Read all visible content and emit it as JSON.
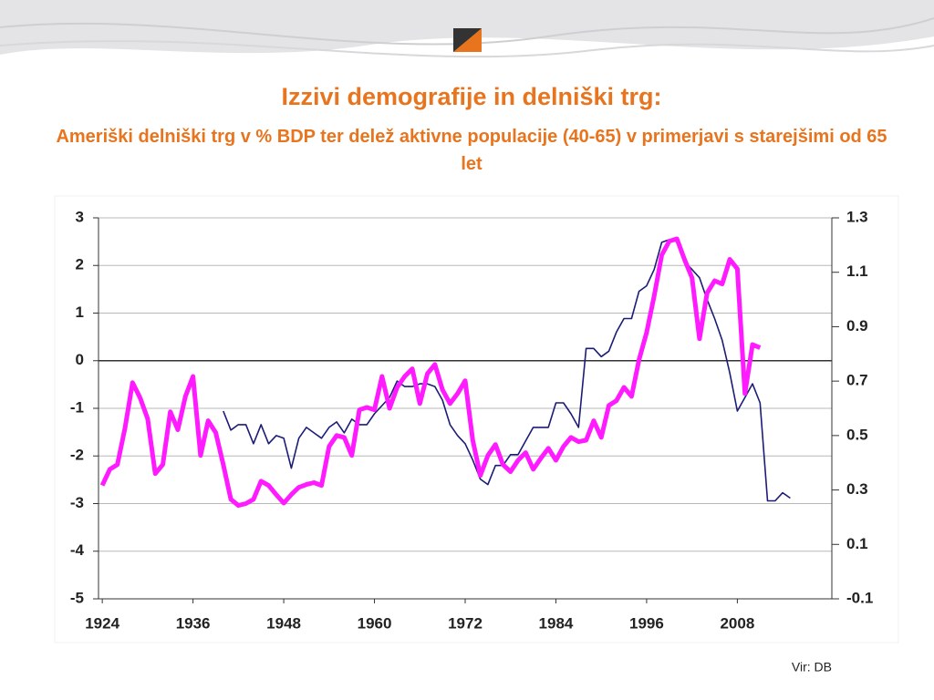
{
  "chart_data": {
    "type": "line",
    "title": "Izzivi demografije in delniški trg:",
    "subtitle": "Ameriški delniški trg v % BDP ter delež aktivne populacije (40-65) v primerjavi s starejšimi od 65 let",
    "source": "Vir: DB",
    "xlim": [
      1923.5,
      2020.5
    ],
    "xticks": [
      1924,
      1936,
      1948,
      1960,
      1972,
      1984,
      1996,
      2008
    ],
    "ylim": [
      -5,
      3
    ],
    "yticks": [
      -5,
      -4,
      -3,
      -2,
      -1,
      0,
      1,
      2,
      3
    ],
    "y2lim": [
      -0.1,
      1.3
    ],
    "y2ticks": [
      -0.1,
      0.1,
      0.3,
      0.5,
      0.7,
      0.9,
      1.1,
      1.3
    ],
    "grid": true,
    "series": [
      {
        "color": "#ff1aff",
        "axis": "y",
        "x": [
          1924,
          1925,
          1926,
          1927,
          1928,
          1929,
          1930,
          1931,
          1932,
          1933,
          1934,
          1935,
          1936,
          1937,
          1938,
          1939,
          1940,
          1941,
          1942,
          1943,
          1944,
          1945,
          1946,
          1947,
          1948,
          1949,
          1950,
          1951,
          1952,
          1953,
          1954,
          1955,
          1956,
          1957,
          1958,
          1959,
          1960,
          1961,
          1962,
          1963,
          1964,
          1965,
          1966,
          1967,
          1968,
          1969,
          1970,
          1971,
          1972,
          1973,
          1974,
          1975,
          1976,
          1977,
          1978,
          1979,
          1980,
          1981,
          1982,
          1983,
          1984,
          1985,
          1986,
          1987,
          1988,
          1989,
          1990,
          1991,
          1992,
          1993,
          1994,
          1995,
          1996,
          1997,
          1998,
          1999,
          2000,
          2001,
          2002,
          2003,
          2004,
          2005,
          2006,
          2007,
          2008,
          2009,
          2010,
          2011
        ],
        "values": [
          -2.62,
          -2.28,
          -2.18,
          -1.42,
          -0.46,
          -0.78,
          -1.22,
          -2.37,
          -2.18,
          -1.07,
          -1.45,
          -0.75,
          -0.33,
          -1.99,
          -1.26,
          -1.51,
          -2.18,
          -2.91,
          -3.04,
          -3.0,
          -2.91,
          -2.53,
          -2.62,
          -2.81,
          -2.99,
          -2.81,
          -2.66,
          -2.6,
          -2.56,
          -2.62,
          -1.8,
          -1.57,
          -1.61,
          -1.99,
          -1.03,
          -0.98,
          -1.03,
          -0.33,
          -1.0,
          -0.56,
          -0.33,
          -0.17,
          -0.9,
          -0.27,
          -0.08,
          -0.61,
          -0.9,
          -0.69,
          -0.42,
          -1.67,
          -2.41,
          -1.99,
          -1.76,
          -2.18,
          -2.33,
          -2.09,
          -1.93,
          -2.28,
          -2.05,
          -1.84,
          -2.09,
          -1.8,
          -1.61,
          -1.7,
          -1.67,
          -1.26,
          -1.61,
          -0.94,
          -0.84,
          -0.56,
          -0.75,
          0.02,
          0.59,
          1.36,
          2.22,
          2.51,
          2.56,
          2.13,
          1.74,
          0.46,
          1.42,
          1.68,
          1.61,
          2.13,
          1.93,
          -0.69,
          0.34,
          0.27
        ]
      },
      {
        "color": "#1c1c78",
        "axis": "y2",
        "x": [
          1940,
          1941,
          1942,
          1943,
          1944,
          1945,
          1946,
          1947,
          1948,
          1949,
          1950,
          1951,
          1952,
          1953,
          1954,
          1955,
          1956,
          1957,
          1958,
          1959,
          1960,
          1961,
          1962,
          1963,
          1964,
          1965,
          1966,
          1967,
          1968,
          1969,
          1970,
          1971,
          1972,
          1973,
          1974,
          1975,
          1976,
          1977,
          1978,
          1979,
          1980,
          1981,
          1982,
          1983,
          1984,
          1985,
          1986,
          1987,
          1988,
          1989,
          1990,
          1991,
          1992,
          1993,
          1994,
          1995,
          1996,
          1997,
          1998,
          1999,
          2000,
          2001,
          2002,
          2003,
          2004,
          2005,
          2006,
          2007,
          2008,
          2009,
          2010,
          2011,
          2012,
          2013,
          2014,
          2015
        ],
        "values": [
          0.59,
          0.52,
          0.54,
          0.54,
          0.47,
          0.54,
          0.47,
          0.5,
          0.49,
          0.38,
          0.49,
          0.53,
          0.51,
          0.49,
          0.53,
          0.55,
          0.51,
          0.56,
          0.54,
          0.54,
          0.58,
          0.61,
          0.64,
          0.7,
          0.68,
          0.68,
          0.69,
          0.69,
          0.68,
          0.63,
          0.54,
          0.5,
          0.47,
          0.41,
          0.34,
          0.32,
          0.39,
          0.39,
          0.43,
          0.43,
          0.48,
          0.53,
          0.53,
          0.53,
          0.62,
          0.62,
          0.58,
          0.53,
          0.82,
          0.82,
          0.79,
          0.81,
          0.88,
          0.93,
          0.93,
          1.03,
          1.05,
          1.11,
          1.21,
          1.22,
          1.22,
          1.14,
          1.11,
          1.08,
          1.0,
          0.93,
          0.85,
          0.73,
          0.59,
          0.64,
          0.69,
          0.62,
          0.26,
          0.26,
          0.29,
          0.27
        ]
      }
    ]
  }
}
